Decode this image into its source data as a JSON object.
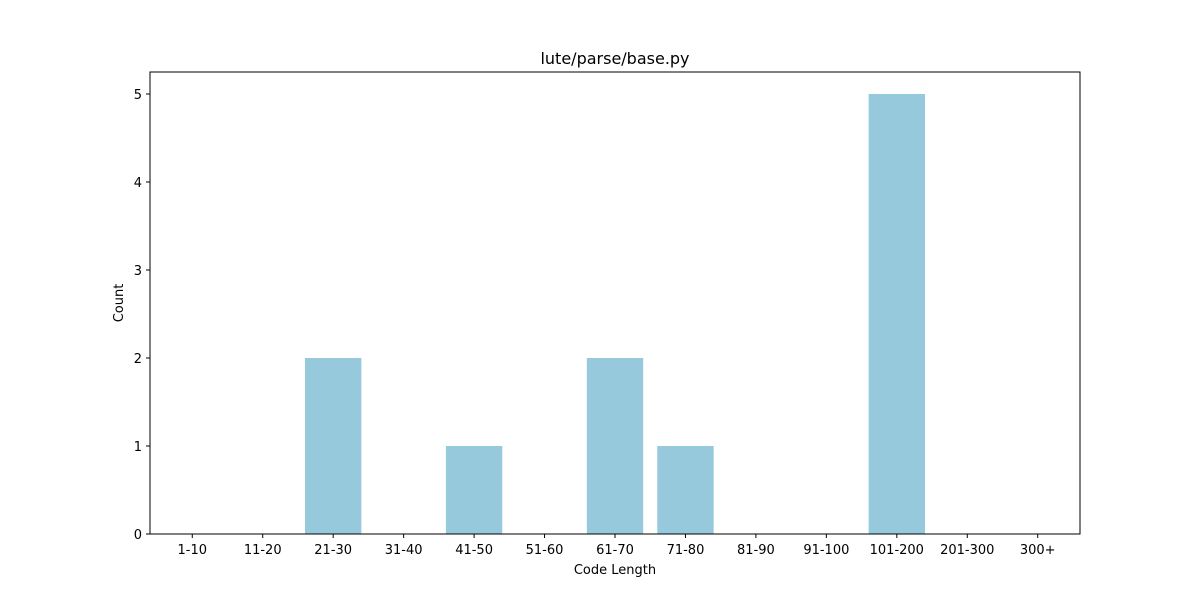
{
  "chart_data": {
    "type": "bar",
    "title": "lute/parse/base.py",
    "xlabel": "Code Length",
    "ylabel": "Count",
    "categories": [
      "1-10",
      "11-20",
      "21-30",
      "31-40",
      "41-50",
      "51-60",
      "61-70",
      "71-80",
      "81-90",
      "91-100",
      "101-200",
      "201-300",
      "300+"
    ],
    "values": [
      0,
      0,
      2,
      0,
      1,
      0,
      2,
      1,
      0,
      0,
      5,
      0,
      0
    ],
    "ylim": [
      0,
      5.25
    ],
    "yticks": [
      "0",
      "1",
      "2",
      "3",
      "4",
      "5"
    ],
    "bar_color": "#96c9dc",
    "grid": false,
    "legend": null
  }
}
